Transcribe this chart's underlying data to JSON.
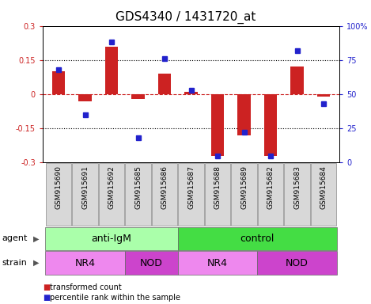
{
  "title": "GDS4340 / 1431720_at",
  "samples": [
    "GSM915690",
    "GSM915691",
    "GSM915692",
    "GSM915685",
    "GSM915686",
    "GSM915687",
    "GSM915688",
    "GSM915689",
    "GSM915682",
    "GSM915683",
    "GSM915684"
  ],
  "red_values": [
    0.1,
    -0.03,
    0.21,
    -0.02,
    0.09,
    0.01,
    -0.27,
    -0.18,
    -0.27,
    0.12,
    -0.01
  ],
  "blue_values": [
    68,
    35,
    88,
    18,
    76,
    53,
    5,
    22,
    5,
    82,
    43
  ],
  "ylim_left": [
    -0.3,
    0.3
  ],
  "ylim_right": [
    0,
    100
  ],
  "yticks_left": [
    -0.3,
    -0.15,
    0.0,
    0.15,
    0.3
  ],
  "yticks_right": [
    0,
    25,
    50,
    75,
    100
  ],
  "ytick_labels_left": [
    "-0.3",
    "-0.15",
    "0",
    "0.15",
    "0.3"
  ],
  "ytick_labels_right": [
    "0",
    "25",
    "50",
    "75",
    "100%"
  ],
  "red_color": "#cc2222",
  "blue_color": "#2222cc",
  "dotted_color": "black",
  "zero_line_color": "#cc2222",
  "agent_groups": [
    {
      "label": "anti-IgM",
      "start": 0,
      "end": 5,
      "color": "#aaeea a"
    },
    {
      "label": "control",
      "start": 5,
      "end": 11,
      "color": "#44dd44"
    }
  ],
  "agent_colors": [
    "#aaffaa",
    "#44dd44"
  ],
  "strain_groups": [
    {
      "label": "NR4",
      "start": 0,
      "end": 3,
      "color": "#ee88ee"
    },
    {
      "label": "NOD",
      "start": 3,
      "end": 5,
      "color": "#cc44cc"
    },
    {
      "label": "NR4",
      "start": 5,
      "end": 8,
      "color": "#ee88ee"
    },
    {
      "label": "NOD",
      "start": 8,
      "end": 11,
      "color": "#cc44cc"
    }
  ],
  "legend_red": "transformed count",
  "legend_blue": "percentile rank within the sample",
  "bar_width": 0.5,
  "tick_label_fontsize": 7,
  "title_fontsize": 11,
  "group_label_fontsize": 9,
  "row_label_fontsize": 8,
  "sample_label_fontsize": 6.5,
  "sample_box_color": "#d8d8d8",
  "sample_box_edge": "#888888"
}
